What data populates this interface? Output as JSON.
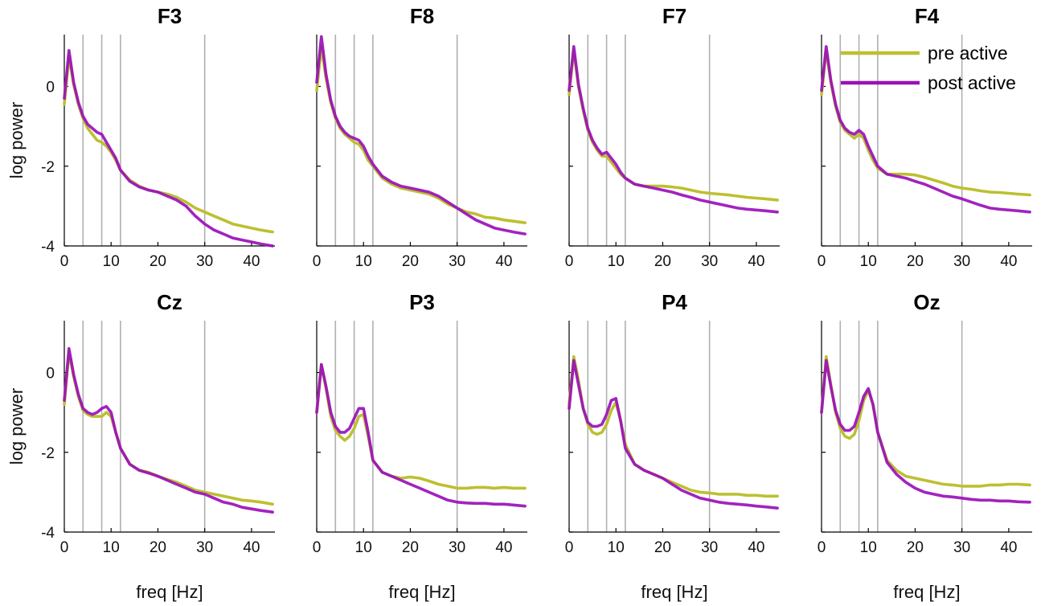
{
  "chart_data": {
    "type": "line",
    "description_units": {
      "x": "freq [Hz]",
      "y": "log power"
    },
    "xlim": [
      0,
      45
    ],
    "ylim": [
      -4,
      1.3
    ],
    "xticks": [
      0,
      10,
      20,
      30,
      40
    ],
    "yticks": [
      0,
      -2,
      -4
    ],
    "xtick_labels": [
      "0",
      "10",
      "20",
      "30",
      "40"
    ],
    "ytick_labels": [
      "0",
      "-2",
      "-4"
    ],
    "xlabel": "freq [Hz]",
    "ylabel": "log power",
    "band_lines_hz": [
      4,
      8,
      12,
      30
    ],
    "legend": {
      "location": "top-right",
      "entries": [
        {
          "label": "pre active",
          "color": "#bcc030"
        },
        {
          "label": "post active",
          "color": "#9a10b8"
        }
      ]
    },
    "x": [
      0,
      1,
      2,
      3,
      4,
      5,
      6,
      7,
      8,
      9,
      10,
      11,
      12,
      14,
      16,
      18,
      20,
      22,
      24,
      26,
      28,
      30,
      32,
      34,
      36,
      38,
      40,
      42,
      44.5
    ],
    "panels": [
      {
        "title": "F3",
        "pre": [
          -0.45,
          0.75,
          0.05,
          -0.45,
          -0.8,
          -1.05,
          -1.2,
          -1.35,
          -1.4,
          -1.5,
          -1.65,
          -1.85,
          -2.1,
          -2.35,
          -2.5,
          -2.6,
          -2.65,
          -2.7,
          -2.78,
          -2.9,
          -3.05,
          -3.15,
          -3.25,
          -3.35,
          -3.45,
          -3.5,
          -3.55,
          -3.6,
          -3.65
        ],
        "post": [
          -0.3,
          0.9,
          0.1,
          -0.4,
          -0.75,
          -0.95,
          -1.05,
          -1.15,
          -1.2,
          -1.4,
          -1.6,
          -1.8,
          -2.1,
          -2.38,
          -2.52,
          -2.6,
          -2.65,
          -2.75,
          -2.85,
          -3.0,
          -3.25,
          -3.45,
          -3.6,
          -3.7,
          -3.8,
          -3.85,
          -3.9,
          -3.95,
          -4.0
        ]
      },
      {
        "title": "F8",
        "pre": [
          -0.1,
          1.0,
          0.2,
          -0.4,
          -0.8,
          -1.05,
          -1.2,
          -1.3,
          -1.4,
          -1.45,
          -1.6,
          -1.85,
          -2.0,
          -2.3,
          -2.45,
          -2.55,
          -2.6,
          -2.65,
          -2.7,
          -2.8,
          -2.95,
          -3.05,
          -3.15,
          -3.2,
          -3.28,
          -3.3,
          -3.35,
          -3.38,
          -3.42
        ],
        "post": [
          0.1,
          1.25,
          0.3,
          -0.35,
          -0.75,
          -1.0,
          -1.15,
          -1.25,
          -1.3,
          -1.35,
          -1.5,
          -1.75,
          -1.95,
          -2.25,
          -2.4,
          -2.5,
          -2.55,
          -2.6,
          -2.65,
          -2.75,
          -2.9,
          -3.05,
          -3.2,
          -3.35,
          -3.45,
          -3.55,
          -3.6,
          -3.65,
          -3.7
        ]
      },
      {
        "title": "F7",
        "pre": [
          -0.2,
          0.9,
          0.0,
          -0.6,
          -1.1,
          -1.4,
          -1.6,
          -1.75,
          -1.75,
          -1.9,
          -2.05,
          -2.2,
          -2.3,
          -2.45,
          -2.5,
          -2.5,
          -2.5,
          -2.52,
          -2.55,
          -2.6,
          -2.65,
          -2.68,
          -2.7,
          -2.72,
          -2.75,
          -2.78,
          -2.8,
          -2.82,
          -2.85
        ],
        "post": [
          -0.1,
          1.0,
          0.05,
          -0.55,
          -1.05,
          -1.35,
          -1.55,
          -1.7,
          -1.65,
          -1.8,
          -1.95,
          -2.15,
          -2.3,
          -2.45,
          -2.5,
          -2.55,
          -2.6,
          -2.65,
          -2.72,
          -2.78,
          -2.85,
          -2.9,
          -2.95,
          -3.0,
          -3.05,
          -3.08,
          -3.1,
          -3.12,
          -3.15
        ]
      },
      {
        "title": "F4",
        "pre": [
          -0.2,
          0.9,
          0.1,
          -0.5,
          -0.9,
          -1.1,
          -1.2,
          -1.3,
          -1.2,
          -1.3,
          -1.6,
          -1.85,
          -2.05,
          -2.2,
          -2.2,
          -2.2,
          -2.22,
          -2.28,
          -2.35,
          -2.42,
          -2.5,
          -2.55,
          -2.58,
          -2.62,
          -2.65,
          -2.66,
          -2.68,
          -2.7,
          -2.72
        ],
        "post": [
          -0.1,
          1.0,
          0.15,
          -0.45,
          -0.85,
          -1.05,
          -1.15,
          -1.2,
          -1.1,
          -1.2,
          -1.5,
          -1.75,
          -2.0,
          -2.2,
          -2.25,
          -2.3,
          -2.38,
          -2.45,
          -2.55,
          -2.65,
          -2.75,
          -2.82,
          -2.9,
          -2.98,
          -3.05,
          -3.08,
          -3.1,
          -3.12,
          -3.15
        ]
      },
      {
        "title": "Cz",
        "pre": [
          -0.8,
          0.5,
          -0.1,
          -0.6,
          -0.95,
          -1.05,
          -1.1,
          -1.1,
          -1.1,
          -1.0,
          -1.1,
          -1.5,
          -1.9,
          -2.3,
          -2.45,
          -2.5,
          -2.6,
          -2.68,
          -2.75,
          -2.85,
          -2.95,
          -3.0,
          -3.05,
          -3.1,
          -3.15,
          -3.2,
          -3.22,
          -3.25,
          -3.3
        ],
        "post": [
          -0.7,
          0.6,
          -0.05,
          -0.55,
          -0.9,
          -1.0,
          -1.05,
          -1.0,
          -0.9,
          -0.85,
          -1.0,
          -1.5,
          -1.9,
          -2.3,
          -2.45,
          -2.52,
          -2.6,
          -2.7,
          -2.8,
          -2.9,
          -3.0,
          -3.05,
          -3.15,
          -3.25,
          -3.3,
          -3.38,
          -3.42,
          -3.46,
          -3.5
        ]
      },
      {
        "title": "P3",
        "pre": [
          -1.0,
          0.2,
          -0.4,
          -1.1,
          -1.45,
          -1.6,
          -1.7,
          -1.6,
          -1.4,
          -1.1,
          -1.05,
          -1.6,
          -2.2,
          -2.5,
          -2.6,
          -2.65,
          -2.62,
          -2.65,
          -2.72,
          -2.8,
          -2.85,
          -2.9,
          -2.9,
          -2.88,
          -2.88,
          -2.9,
          -2.88,
          -2.9,
          -2.9
        ],
        "post": [
          -1.0,
          0.2,
          -0.35,
          -1.0,
          -1.35,
          -1.5,
          -1.5,
          -1.4,
          -1.15,
          -0.9,
          -0.9,
          -1.5,
          -2.2,
          -2.5,
          -2.6,
          -2.7,
          -2.8,
          -2.9,
          -3.0,
          -3.1,
          -3.2,
          -3.25,
          -3.27,
          -3.28,
          -3.28,
          -3.3,
          -3.3,
          -3.32,
          -3.35
        ]
      },
      {
        "title": "P4",
        "pre": [
          -0.8,
          0.4,
          -0.2,
          -0.9,
          -1.3,
          -1.5,
          -1.55,
          -1.5,
          -1.3,
          -0.95,
          -0.75,
          -1.2,
          -1.8,
          -2.3,
          -2.45,
          -2.55,
          -2.65,
          -2.75,
          -2.85,
          -2.95,
          -3.0,
          -3.02,
          -3.05,
          -3.05,
          -3.05,
          -3.08,
          -3.08,
          -3.1,
          -3.1
        ],
        "post": [
          -0.9,
          0.3,
          -0.3,
          -0.9,
          -1.25,
          -1.35,
          -1.35,
          -1.3,
          -1.05,
          -0.7,
          -0.65,
          -1.2,
          -1.9,
          -2.3,
          -2.45,
          -2.55,
          -2.65,
          -2.8,
          -2.95,
          -3.05,
          -3.15,
          -3.2,
          -3.25,
          -3.28,
          -3.3,
          -3.32,
          -3.35,
          -3.37,
          -3.4
        ]
      },
      {
        "title": "Oz",
        "pre": [
          -1.0,
          0.4,
          -0.3,
          -1.0,
          -1.4,
          -1.6,
          -1.65,
          -1.55,
          -1.2,
          -0.7,
          -0.45,
          -0.8,
          -1.5,
          -2.2,
          -2.45,
          -2.6,
          -2.65,
          -2.7,
          -2.75,
          -2.8,
          -2.82,
          -2.85,
          -2.85,
          -2.85,
          -2.82,
          -2.82,
          -2.8,
          -2.8,
          -2.82
        ],
        "post": [
          -1.0,
          0.3,
          -0.35,
          -0.95,
          -1.3,
          -1.45,
          -1.45,
          -1.35,
          -1.0,
          -0.6,
          -0.4,
          -0.8,
          -1.5,
          -2.25,
          -2.55,
          -2.75,
          -2.9,
          -3.0,
          -3.05,
          -3.1,
          -3.12,
          -3.15,
          -3.18,
          -3.2,
          -3.2,
          -3.22,
          -3.22,
          -3.24,
          -3.25
        ]
      }
    ]
  }
}
